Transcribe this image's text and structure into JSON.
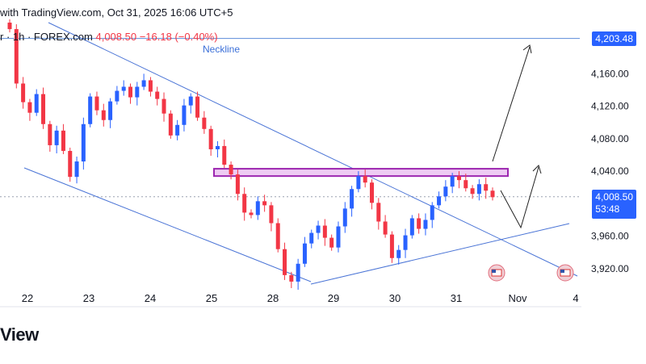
{
  "header": {
    "watermark": "with TradingView.com, Oct 31, 2025 16:06 UTC+5",
    "symbol_line": "r · 1h · FOREX.com",
    "last_price": "4,008.50",
    "change": "−16.18 (−0.40%)"
  },
  "annotations": {
    "neckline_label": "Neckline",
    "target_price": "4,203.48",
    "current_price": "4,008.50",
    "countdown": "53:48"
  },
  "brand": {
    "footer": "View"
  },
  "colors": {
    "up": "#2962ff",
    "down": "#f23645",
    "trend": "#4a74d6",
    "zone_fill": "#eecbf3",
    "zone_stroke": "#9c27b0",
    "target_line": "#5b8bd9"
  },
  "icons": {
    "event_flag": "us-flag-icon"
  },
  "chart_data": {
    "type": "candlestick",
    "yaxis": {
      "ticks": [
        "4,160.00",
        "4,120.00",
        "4,080.00",
        "4,040.00",
        "3,960.00",
        "3,920.00"
      ],
      "tick_values": [
        4160,
        4120,
        4080,
        4040,
        3960,
        3920
      ],
      "range": [
        3890,
        4228
      ]
    },
    "xaxis": {
      "ticks": [
        "22",
        "23",
        "24",
        "25",
        "28",
        "29",
        "30",
        "31",
        "Nov",
        "4"
      ]
    },
    "target_level": 4203.48,
    "current_level": 4008.5,
    "resistance_zone": [
      4034,
      4043
    ],
    "series_close": [
      4215,
      4148,
      4125,
      4112,
      4135,
      4098,
      4072,
      4090,
      4065,
      4033,
      4052,
      4098,
      4132,
      4115,
      4103,
      4126,
      4139,
      4144,
      4131,
      4144,
      4152,
      4138,
      4129,
      4111,
      4084,
      4097,
      4121,
      4132,
      4106,
      4092,
      4067,
      4071,
      4048,
      4036,
      4012,
      3989,
      3986,
      4003,
      3998,
      3976,
      3944,
      3912,
      3904,
      3926,
      3951,
      3964,
      3973,
      3958,
      3946,
      3972,
      3994,
      4018,
      4034,
      4026,
      4001,
      3978,
      3962,
      3933,
      3943,
      3961,
      3982,
      3969,
      3980,
      3998,
      4009,
      4021,
      4034,
      4029,
      4019,
      4012,
      4024,
      4016,
      4008
    ]
  }
}
